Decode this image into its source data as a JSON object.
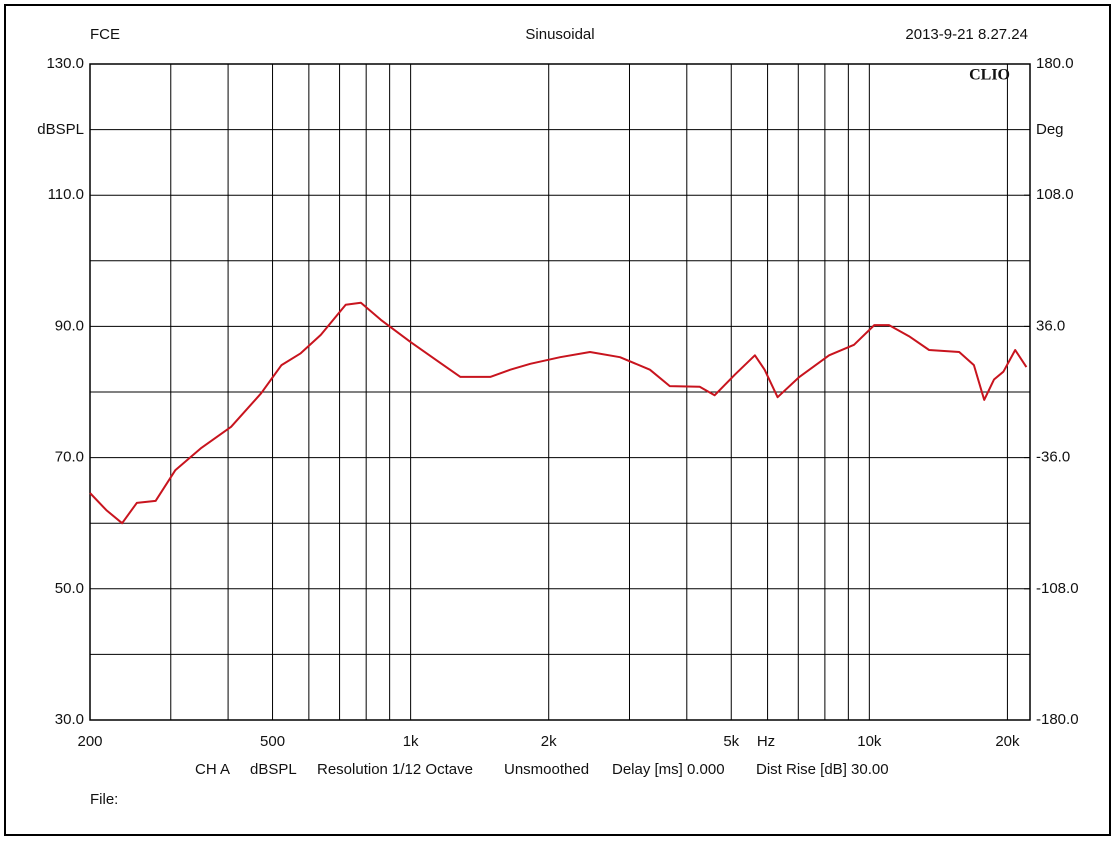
{
  "chart_data": {
    "type": "line",
    "header_left": "FCE",
    "title": "Sinusoidal",
    "timestamp": "2013-9-21 8.27.24",
    "brand": "CLIO",
    "y_label": "dBSPL",
    "y2_label": "Deg",
    "x_label": "Hz",
    "log_x": true,
    "grid": true,
    "xlim": [
      200,
      22400
    ],
    "xticks": [
      200,
      500,
      {
        "value": 1000,
        "label": "1k"
      },
      {
        "value": 2000,
        "label": "2k"
      },
      {
        "value": 5000,
        "label": "5k"
      },
      {
        "value": 10000,
        "label": "10k"
      },
      {
        "value": 20000,
        "label": "20k"
      }
    ],
    "xgrid": [
      300,
      400,
      600,
      700,
      800,
      900,
      3000,
      4000,
      6000,
      7000,
      8000,
      9000
    ],
    "ylim": [
      30,
      130
    ],
    "yticks": [
      {
        "value": 130,
        "label": "130.0"
      },
      {
        "value": 110,
        "label": "110.0"
      },
      {
        "value": 90,
        "label": "90.0"
      },
      {
        "value": 70,
        "label": "70.0"
      },
      {
        "value": 50,
        "label": "50.0"
      },
      {
        "value": 30,
        "label": "30.0"
      }
    ],
    "ygrid": [
      120,
      100,
      80,
      60,
      40
    ],
    "y2lim": [
      -180,
      180
    ],
    "y2ticks": [
      {
        "value": 180,
        "label": "180.0"
      },
      {
        "value": 108,
        "label": "108.0"
      },
      {
        "value": 36,
        "label": "36.0"
      },
      {
        "value": -36,
        "label": "-36.0"
      },
      {
        "value": -108,
        "label": "-108.0"
      },
      {
        "value": -180,
        "label": "-180.0"
      }
    ],
    "series": [
      {
        "name": "CH A",
        "color": "#c8141e",
        "x": [
          200,
          217,
          235,
          253,
          278,
          307,
          350,
          406,
          472,
          523,
          576,
          637,
          722,
          779,
          861,
          1000,
          1162,
          1284,
          1492,
          1649,
          1823,
          2118,
          2461,
          2860,
          3323,
          3673,
          4268,
          4600,
          5100,
          5630,
          5910,
          6310,
          7040,
          8170,
          9260,
          10250,
          11040,
          12200,
          13500,
          15700,
          16900,
          17800,
          18700,
          19600,
          20800,
          22000
        ],
        "values": [
          64.6,
          62.0,
          60.0,
          63.1,
          63.4,
          68.1,
          71.5,
          74.7,
          79.8,
          84.1,
          85.9,
          88.7,
          93.3,
          93.6,
          91.0,
          87.6,
          84.4,
          82.3,
          82.3,
          83.4,
          84.3,
          85.3,
          86.1,
          85.3,
          83.4,
          80.9,
          80.8,
          79.5,
          82.7,
          85.6,
          83.4,
          79.2,
          82.3,
          85.6,
          87.2,
          90.2,
          90.2,
          88.5,
          86.4,
          86.1,
          84.1,
          78.8,
          81.9,
          83.1,
          86.4,
          83.8
        ]
      }
    ],
    "info": [
      "CH A",
      "dBSPL",
      "Resolution 1/12 Octave",
      "Unsmoothed",
      "Delay [ms] 0.000",
      "Dist Rise [dB] 30.00"
    ],
    "file_label": "File:"
  }
}
